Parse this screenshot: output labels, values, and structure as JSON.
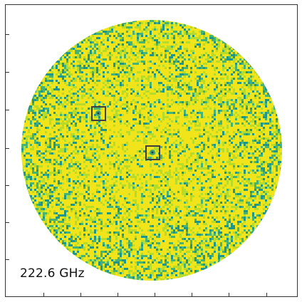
{
  "image": {
    "frequency_label": "222.6 GHz",
    "palette": {
      "yellow": "#f2e41a",
      "lime": "#b5dc2b",
      "green": "#45b373",
      "teal": "#1f968b",
      "background": "#ffffff",
      "box_stroke": "#3f3f3f"
    },
    "markers": [
      {
        "name": "source-box-left"
      },
      {
        "name": "source-box-center"
      }
    ]
  }
}
